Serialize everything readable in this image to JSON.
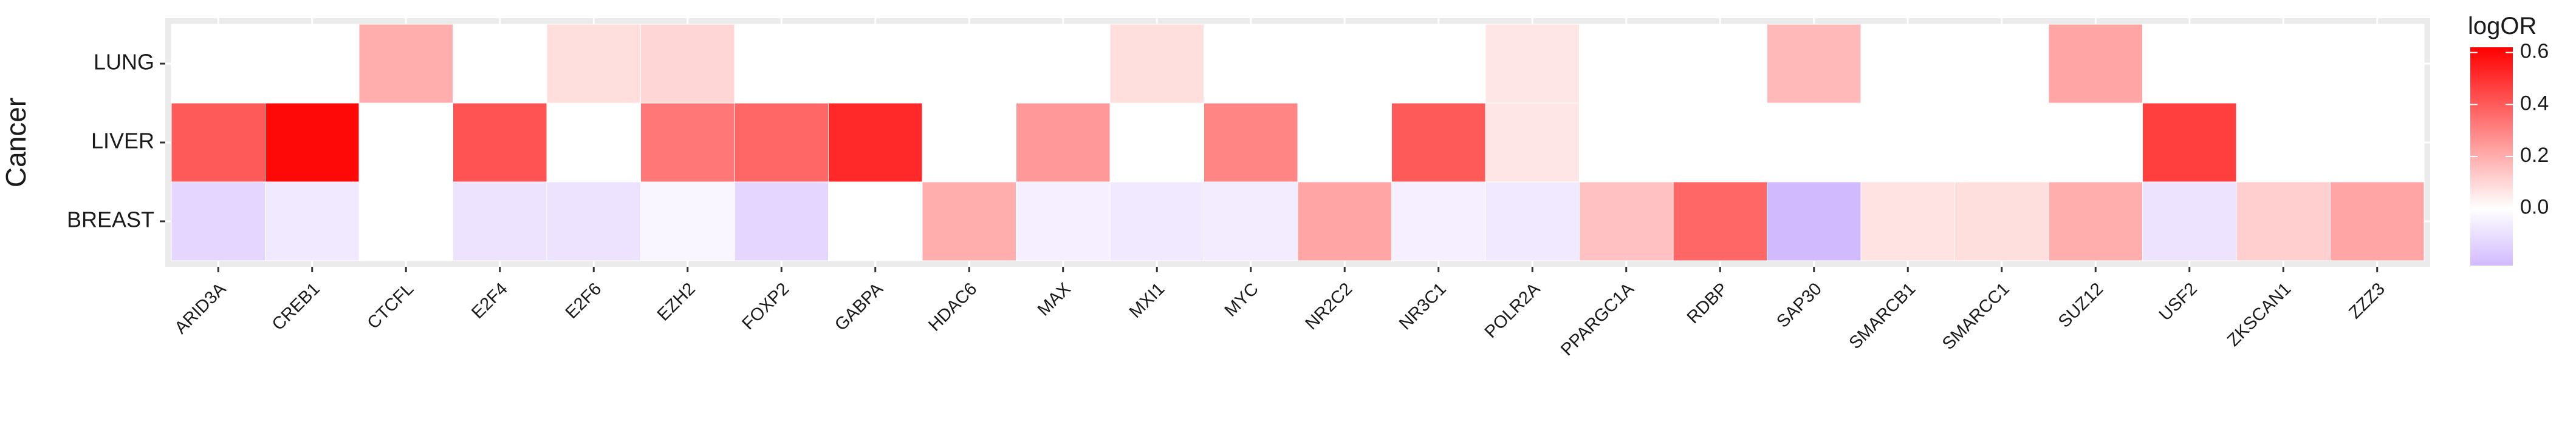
{
  "chart_data": {
    "type": "heatmap",
    "title": "",
    "xlabel": "",
    "ylabel": "Cancer",
    "x_categories": [
      "ARID3A",
      "CREB1",
      "CTCFL",
      "E2F4",
      "E2F6",
      "EZH2",
      "FOXP2",
      "GABPA",
      "HDAC6",
      "MAX",
      "MXI1",
      "MYC",
      "NR2C2",
      "NR3C1",
      "POLR2A",
      "PPARGC1A",
      "RDBP",
      "SAP30",
      "SMARCB1",
      "SMARCC1",
      "SUZ12",
      "USF2",
      "ZKSCAN1",
      "ZZZ3"
    ],
    "y_categories": [
      "LUNG",
      "LIVER",
      "BREAST"
    ],
    "values": [
      [
        null,
        null,
        0.2,
        null,
        0.08,
        0.1,
        null,
        null,
        null,
        null,
        0.08,
        null,
        null,
        null,
        0.06,
        null,
        null,
        0.17,
        null,
        null,
        0.22,
        null,
        null,
        null
      ],
      [
        0.4,
        0.6,
        null,
        0.42,
        null,
        0.33,
        0.37,
        0.52,
        null,
        0.25,
        null,
        0.3,
        null,
        0.4,
        0.06,
        null,
        null,
        null,
        null,
        null,
        null,
        0.47,
        null,
        null
      ],
      [
        -0.13,
        -0.07,
        null,
        -0.09,
        -0.09,
        -0.03,
        -0.13,
        null,
        0.2,
        -0.05,
        -0.07,
        -0.06,
        0.22,
        -0.05,
        -0.07,
        0.15,
        0.37,
        -0.22,
        0.07,
        0.08,
        0.2,
        -0.09,
        0.12,
        0.22
      ]
    ],
    "legend": {
      "title": "logOR",
      "ticks": [
        0.6,
        0.4,
        0.2,
        0.0
      ],
      "tick_labels": [
        "0.6",
        "0.4",
        "0.2",
        "0.0"
      ],
      "range": [
        -0.22,
        0.62
      ],
      "placement": "right"
    },
    "colors": {
      "high": "#ff0000",
      "mid": "#ffffff",
      "low": "#d2baff",
      "panel_background": "#ebebeb",
      "gridline": "#ffffff"
    }
  }
}
